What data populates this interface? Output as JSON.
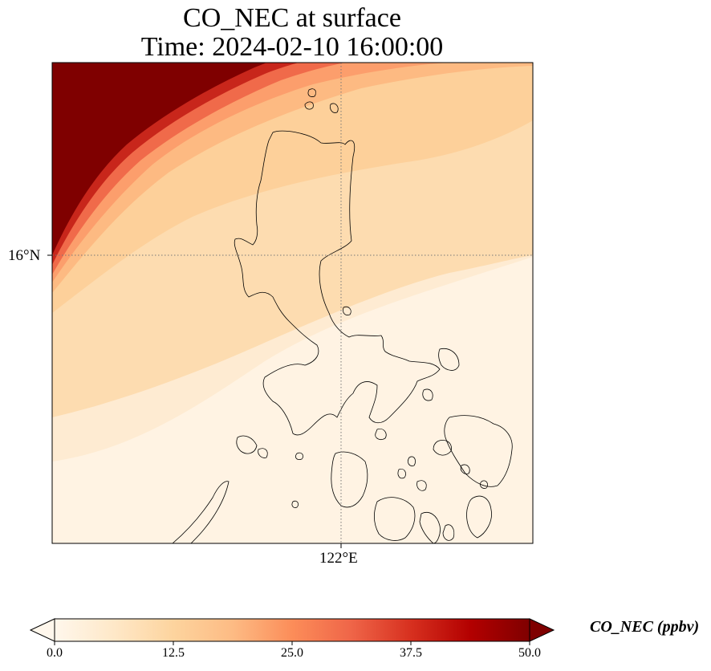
{
  "title": {
    "line1": "CO_NEC at surface",
    "line2": "Time: 2024-02-10 16:00:00"
  },
  "map": {
    "variable": "CO_NEC",
    "level": "surface",
    "lat_gridline_label": "16°N",
    "lon_gridline_label": "122°E",
    "lat_gridline_value": 16,
    "lon_gridline_value": 122,
    "colormap": "OrRd"
  },
  "colorbar": {
    "label": "CO_NEC (ppbv)",
    "min": 0.0,
    "max": 50.0,
    "extend": "both",
    "ticks": [
      "0.0",
      "12.5",
      "25.0",
      "37.5",
      "50.0"
    ],
    "tick_values": [
      0.0,
      12.5,
      25.0,
      37.5,
      50.0
    ],
    "colors": [
      "#fff7ec",
      "#fee8c8",
      "#fdd49e",
      "#fdbb84",
      "#fc8d59",
      "#ef6548",
      "#d7301f",
      "#b30000",
      "#7f0000"
    ]
  }
}
